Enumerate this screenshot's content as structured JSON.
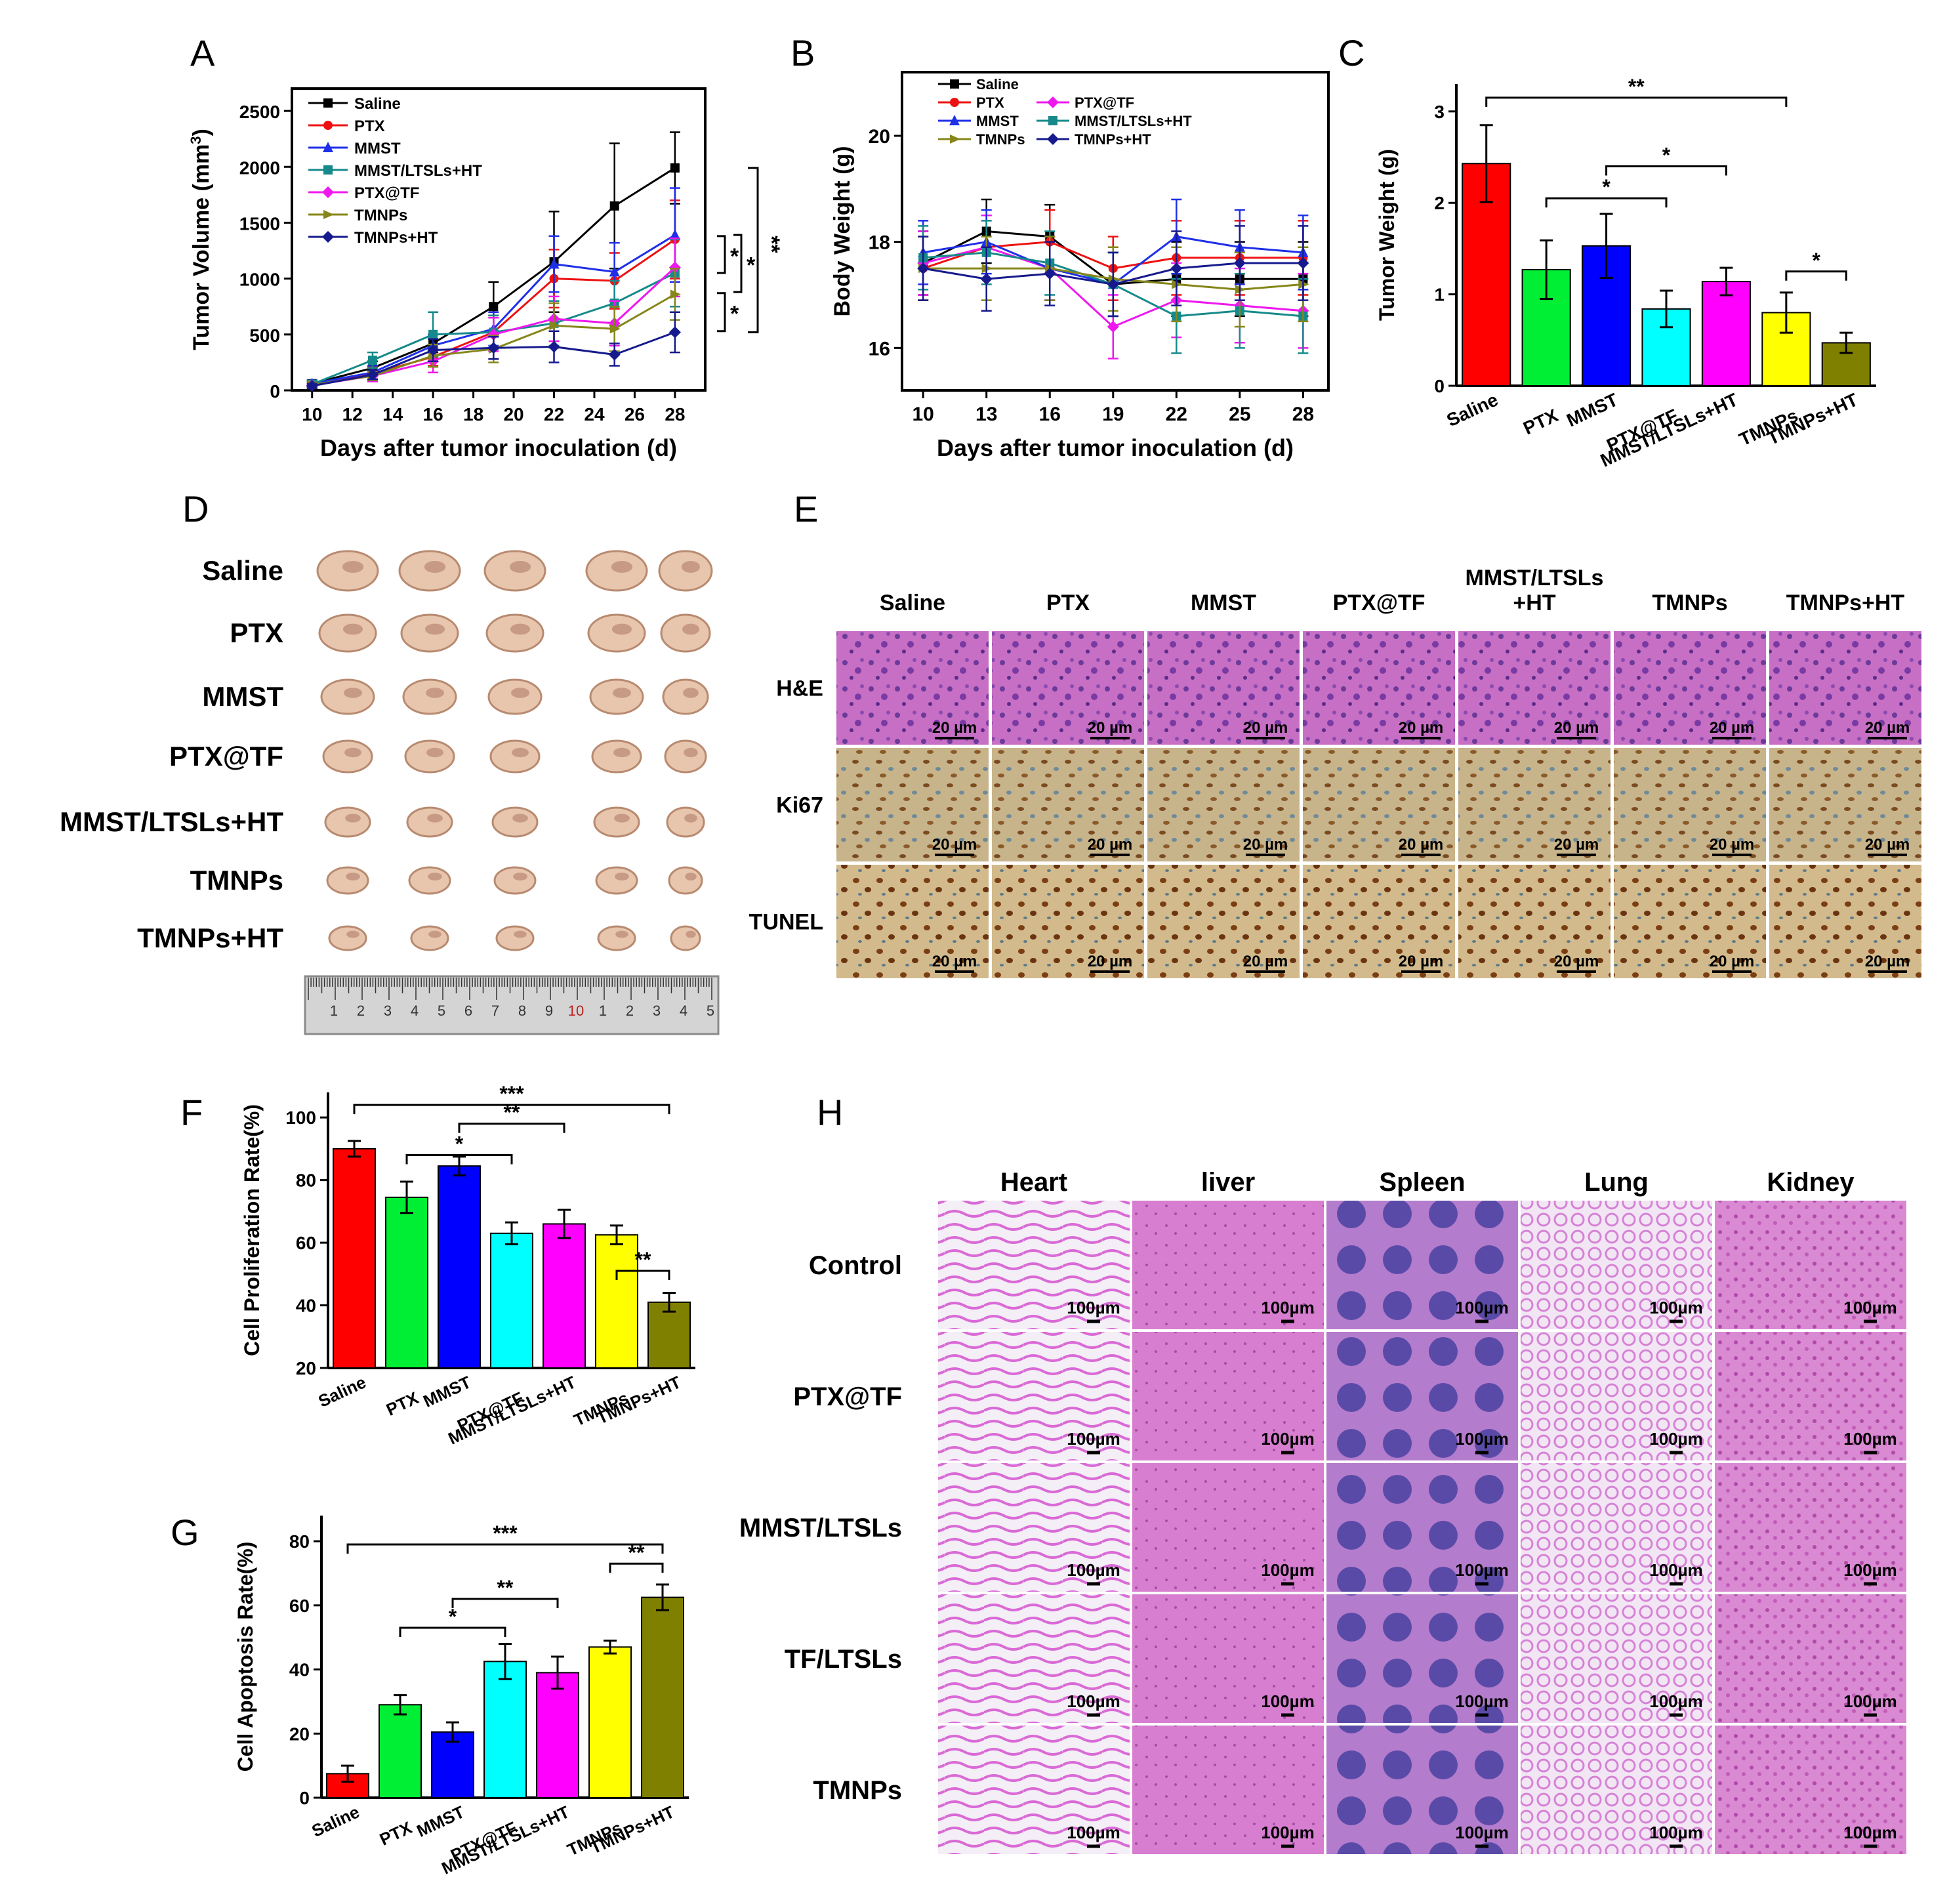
{
  "figure": {
    "panel_letters": [
      "A",
      "B",
      "C",
      "D",
      "E",
      "F",
      "G",
      "H"
    ],
    "colors": {
      "Saline": "#000000",
      "PTX": "#ee1111",
      "MMST": "#1f2fe8",
      "MMST/LTSLs+HT": "#168a8a",
      "PTX@TF": "#ee18ee",
      "TMNPs": "#86861a",
      "TMNPs+HT": "#161a8c"
    },
    "bar_colors": [
      "#ff0000",
      "#00ee33",
      "#0000ff",
      "#00ffff",
      "#ff00ff",
      "#ffff00",
      "#808000"
    ]
  },
  "chart_data": [
    {
      "panel": "A",
      "type": "line",
      "xlabel": "Days after tumor inoculation (d)",
      "ylabel": "Tumor Volume (mm",
      "ylabel_sup": "3",
      "ylabel_end": ")",
      "xlim": [
        9,
        29.5
      ],
      "ylim": [
        0,
        2700
      ],
      "xticks": [
        10,
        12,
        14,
        16,
        18,
        20,
        22,
        24,
        26,
        28
      ],
      "yticks": [
        0,
        500,
        1000,
        1500,
        2000,
        2500
      ],
      "x": [
        10,
        13,
        16,
        19,
        22,
        25,
        28
      ],
      "series": [
        {
          "name": "Saline",
          "values": [
            60,
            200,
            420,
            750,
            1150,
            1650,
            1990
          ],
          "err": [
            30,
            60,
            80,
            220,
            450,
            560,
            320
          ]
        },
        {
          "name": "PTX",
          "values": [
            50,
            150,
            300,
            520,
            1000,
            980,
            1350
          ],
          "err": [
            30,
            60,
            80,
            150,
            260,
            250,
            350
          ]
        },
        {
          "name": "MMST",
          "values": [
            60,
            160,
            400,
            550,
            1130,
            1060,
            1390
          ],
          "err": [
            30,
            60,
            100,
            150,
            250,
            260,
            420
          ]
        },
        {
          "name": "MMST/LTSLs+HT",
          "values": [
            55,
            270,
            500,
            520,
            600,
            780,
            1050
          ],
          "err": [
            30,
            70,
            200,
            150,
            200,
            200,
            300
          ]
        },
        {
          "name": "PTX@TF",
          "values": [
            45,
            130,
            260,
            500,
            640,
            600,
            1100
          ],
          "err": [
            20,
            50,
            100,
            150,
            200,
            200,
            260
          ]
        },
        {
          "name": "TMNPs",
          "values": [
            50,
            130,
            310,
            370,
            580,
            550,
            860
          ],
          "err": [
            20,
            40,
            100,
            120,
            200,
            200,
            230
          ]
        },
        {
          "name": "TMNPs+HT",
          "values": [
            40,
            140,
            360,
            380,
            390,
            320,
            520
          ],
          "err": [
            20,
            40,
            100,
            100,
            140,
            100,
            180
          ]
        }
      ],
      "significance": [
        "*",
        "*",
        "**",
        "*"
      ]
    },
    {
      "panel": "B",
      "type": "line",
      "xlabel": "Days after tumor inoculation (d)",
      "ylabel": "Body Weight (g)",
      "xlim": [
        9,
        29.2
      ],
      "ylim": [
        15.2,
        21.2
      ],
      "xticks": [
        10,
        13,
        16,
        19,
        22,
        25,
        28
      ],
      "yticks": [
        16,
        18,
        20
      ],
      "x": [
        10,
        13,
        16,
        19,
        22,
        25,
        28
      ],
      "series": [
        {
          "name": "Saline",
          "values": [
            17.6,
            18.2,
            18.1,
            17.2,
            17.3,
            17.3,
            17.3
          ],
          "err": [
            0.6,
            0.6,
            0.6,
            0.6,
            0.7,
            0.7,
            0.7
          ]
        },
        {
          "name": "PTX",
          "values": [
            17.5,
            17.9,
            18.0,
            17.5,
            17.7,
            17.7,
            17.7
          ],
          "err": [
            0.6,
            0.6,
            0.6,
            0.6,
            0.7,
            0.7,
            0.7
          ]
        },
        {
          "name": "PTX@TF",
          "values": [
            17.6,
            17.9,
            17.5,
            16.4,
            16.9,
            16.8,
            16.7
          ],
          "err": [
            0.6,
            0.6,
            0.6,
            0.6,
            0.7,
            0.7,
            0.7
          ]
        },
        {
          "name": "MMST",
          "values": [
            17.8,
            18.0,
            17.5,
            17.2,
            18.1,
            17.9,
            17.8
          ],
          "err": [
            0.6,
            0.6,
            0.6,
            0.6,
            0.7,
            0.7,
            0.7
          ]
        },
        {
          "name": "MMST/LTSLs+HT",
          "values": [
            17.7,
            17.8,
            17.6,
            17.2,
            16.6,
            16.7,
            16.6
          ],
          "err": [
            0.6,
            0.6,
            0.6,
            0.6,
            0.7,
            0.7,
            0.7
          ]
        },
        {
          "name": "TMNPs",
          "values": [
            17.5,
            17.5,
            17.5,
            17.3,
            17.2,
            17.1,
            17.2
          ],
          "err": [
            0.6,
            0.6,
            0.6,
            0.6,
            0.7,
            0.7,
            0.7
          ]
        },
        {
          "name": "TMNPs+HT",
          "values": [
            17.5,
            17.3,
            17.4,
            17.2,
            17.5,
            17.6,
            17.6
          ],
          "err": [
            0.6,
            0.6,
            0.6,
            0.6,
            0.7,
            0.7,
            0.7
          ]
        }
      ]
    },
    {
      "panel": "C",
      "type": "bar",
      "ylabel": "Tumor Weight (g)",
      "ylim": [
        0,
        3.3
      ],
      "yticks": [
        0,
        1,
        2,
        3
      ],
      "categories": [
        "Saline",
        "PTX",
        "MMST",
        "PTX@TF",
        "MMST/LTSLs+HT",
        "TMNPs",
        "TMNPs+HT"
      ],
      "values": [
        2.43,
        1.27,
        1.53,
        0.84,
        1.14,
        0.8,
        0.47
      ],
      "err": [
        0.42,
        0.32,
        0.35,
        0.2,
        0.15,
        0.22,
        0.11
      ],
      "significance": [
        "**",
        "*",
        "*",
        "*"
      ]
    },
    {
      "panel": "F",
      "type": "bar",
      "ylabel": "Cell Proliferation Rate(%)",
      "ylim": [
        20,
        108
      ],
      "yticks": [
        20,
        40,
        60,
        80,
        100
      ],
      "categories": [
        "Saline",
        "PTX",
        "MMST",
        "PTX@TF",
        "MMST/LTSLs+HT",
        "TMNPs",
        "TMNPs+HT"
      ],
      "values": [
        90,
        74.5,
        84.5,
        63,
        66,
        62.5,
        41
      ],
      "err": [
        2.5,
        5,
        3,
        3.5,
        4.5,
        3,
        3
      ],
      "significance": [
        "***",
        "**",
        "*",
        "**"
      ]
    },
    {
      "panel": "G",
      "type": "bar",
      "ylabel": "Cell Apoptosis Rate(%)",
      "ylim": [
        0,
        88
      ],
      "yticks": [
        0,
        20,
        40,
        60,
        80
      ],
      "categories": [
        "Saline",
        "PTX",
        "MMST",
        "PTX@TF",
        "MMST/LTSLs+HT",
        "TMNPs",
        "TMNPs+HT"
      ],
      "values": [
        7.5,
        29,
        20.5,
        42.5,
        39,
        47,
        62.5
      ],
      "err": [
        2.5,
        3,
        3,
        5.5,
        5,
        2,
        4
      ],
      "significance": [
        "***",
        "**",
        "*",
        "**"
      ]
    }
  ],
  "panelD": {
    "rows": [
      "Saline",
      "PTX",
      "MMST",
      "PTX@TF",
      "MMST/LTSLs+HT",
      "TMNPs",
      "TMNPs+HT"
    ],
    "ruler_labels": [
      "1",
      "2",
      "3",
      "4",
      "5",
      "6",
      "7",
      "8",
      "9",
      "10",
      "1",
      "2",
      "3",
      "4",
      "5"
    ]
  },
  "panelE": {
    "columns": [
      "Saline",
      "PTX",
      "MMST",
      "PTX@TF",
      "MMST/LTSLs\n+HT",
      "TMNPs",
      "TMNPs+HT"
    ],
    "rows": [
      "H&E",
      "Ki67",
      "TUNEL"
    ],
    "scale": "20 µm"
  },
  "panelH": {
    "columns": [
      "Heart",
      "liver",
      "Spleen",
      "Lung",
      "Kidney"
    ],
    "rows": [
      "Control",
      "PTX@TF",
      "MMST/LTSLs",
      "TF/LTSLs",
      "TMNPs"
    ],
    "scale": "100µm"
  }
}
